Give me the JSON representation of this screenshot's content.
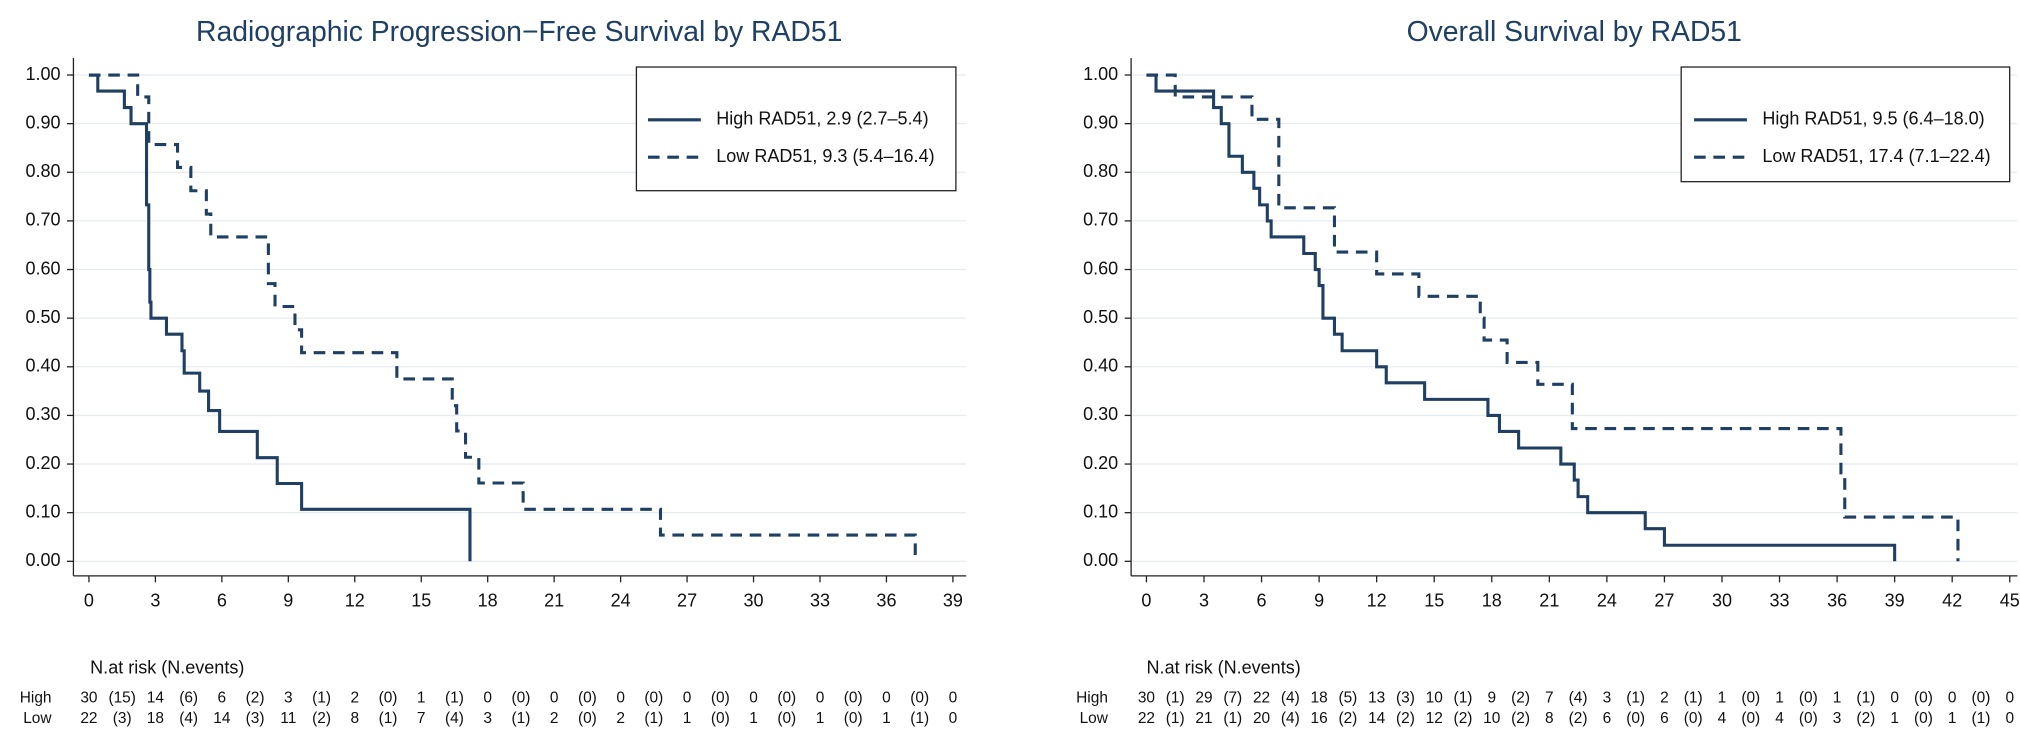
{
  "chart_data": [
    {
      "type": "step",
      "title": "Radiographic Progression−Free Survival by RAD51",
      "xlim": [
        -0.7,
        39.6
      ],
      "ylim": [
        -0.03,
        1.035
      ],
      "xticks": [
        0,
        3,
        6,
        9,
        12,
        15,
        18,
        21,
        24,
        27,
        30,
        33,
        36,
        39
      ],
      "yticks": [
        {
          "value": 0,
          "label": "0.00"
        },
        {
          "value": 0.1,
          "label": "0.10"
        },
        {
          "value": 0.2,
          "label": "0.20"
        },
        {
          "value": 0.3,
          "label": "0.30"
        },
        {
          "value": 0.4,
          "label": "0.40"
        },
        {
          "value": 0.5,
          "label": "0.50"
        },
        {
          "value": 0.6,
          "label": "0.60"
        },
        {
          "value": 0.7,
          "label": "0.70"
        },
        {
          "value": 0.8,
          "label": "0.80"
        },
        {
          "value": 0.9,
          "label": "0.90"
        },
        {
          "value": 1,
          "label": "1.00"
        }
      ],
      "grid": true,
      "series": [
        {
          "name": "High RAD51, 2.9 (2.7–5.4)",
          "color": "#1f3f63",
          "dashed": false,
          "x": [
            0,
            0.4,
            1.6,
            1.9,
            2.6,
            2.7,
            2.75,
            2.8,
            3.5,
            4.2,
            4.3,
            5.0,
            5.4,
            5.9,
            7.6,
            8.5,
            9.6,
            17.2
          ],
          "values": [
            1,
            0.967,
            0.933,
            0.9,
            0.733,
            0.6,
            0.533,
            0.5,
            0.467,
            0.433,
            0.387,
            0.35,
            0.31,
            0.267,
            0.213,
            0.16,
            0.107,
            0
          ]
        },
        {
          "name": "Low RAD51, 9.3 (5.4–16.4)",
          "color": "#1f3f63",
          "dashed": true,
          "x": [
            0,
            2.2,
            2.7,
            4.0,
            4.6,
            5.3,
            5.5,
            8.1,
            8.4,
            9.3,
            9.6,
            13.9,
            16.4,
            16.6,
            17.0,
            17.6,
            19.6,
            25.8,
            37.3
          ],
          "values": [
            1,
            0.955,
            0.857,
            0.81,
            0.762,
            0.714,
            0.667,
            0.571,
            0.524,
            0.476,
            0.429,
            0.375,
            0.32,
            0.268,
            0.214,
            0.161,
            0.107,
            0.054,
            0
          ]
        }
      ],
      "risk_table": {
        "title": "N.at risk (N.events)",
        "rows": [
          {
            "name": "High",
            "at_risk": [
              30,
              14,
              6,
              3,
              2,
              1,
              0,
              0,
              0,
              0,
              0,
              0,
              0,
              0
            ],
            "events": [
              "(15)",
              "(6)",
              "(2)",
              "(1)",
              "(0)",
              "(1)",
              "(0)",
              "(0)",
              "(0)",
              "(0)",
              "(0)",
              "(0)",
              "(0)"
            ]
          },
          {
            "name": "Low",
            "at_risk": [
              22,
              18,
              14,
              11,
              8,
              7,
              3,
              2,
              2,
              1,
              1,
              1,
              1,
              0
            ],
            "events": [
              "(3)",
              "(4)",
              "(3)",
              "(2)",
              "(1)",
              "(4)",
              "(1)",
              "(0)",
              "(1)",
              "(0)",
              "(0)",
              "(0)",
              "(1)"
            ]
          }
        ]
      }
    },
    {
      "type": "step",
      "title": "Overall Survival by RAD51",
      "xlim": [
        -0.8,
        45.4
      ],
      "ylim": [
        -0.03,
        1.035
      ],
      "xticks": [
        0,
        3,
        6,
        9,
        12,
        15,
        18,
        21,
        24,
        27,
        30,
        33,
        36,
        39,
        42,
        45
      ],
      "yticks": [
        {
          "value": 0,
          "label": "0.00"
        },
        {
          "value": 0.1,
          "label": "0.10"
        },
        {
          "value": 0.2,
          "label": "0.20"
        },
        {
          "value": 0.3,
          "label": "0.30"
        },
        {
          "value": 0.4,
          "label": "0.40"
        },
        {
          "value": 0.5,
          "label": "0.50"
        },
        {
          "value": 0.6,
          "label": "0.60"
        },
        {
          "value": 0.7,
          "label": "0.70"
        },
        {
          "value": 0.8,
          "label": "0.80"
        },
        {
          "value": 0.9,
          "label": "0.90"
        },
        {
          "value": 1,
          "label": "1.00"
        }
      ],
      "grid": true,
      "series": [
        {
          "name": "High RAD51, 9.5 (6.4–18.0)",
          "color": "#1f3f63",
          "dashed": false,
          "x": [
            0,
            0.5,
            3.5,
            3.9,
            4.3,
            5.0,
            5.6,
            5.9,
            6.3,
            6.5,
            8.2,
            8.8,
            9.0,
            9.2,
            9.8,
            10.2,
            12.0,
            12.5,
            14.5,
            17.8,
            18.4,
            19.4,
            21.6,
            22.3,
            22.5,
            23.0,
            26.0,
            27.0,
            39.0
          ],
          "values": [
            1,
            0.967,
            0.933,
            0.9,
            0.833,
            0.8,
            0.767,
            0.733,
            0.7,
            0.667,
            0.633,
            0.6,
            0.567,
            0.5,
            0.467,
            0.433,
            0.4,
            0.367,
            0.333,
            0.3,
            0.267,
            0.233,
            0.2,
            0.167,
            0.133,
            0.1,
            0.067,
            0.033,
            0
          ]
        },
        {
          "name": "Low RAD51, 17.4 (7.1–22.4)",
          "color": "#1f3f63",
          "dashed": true,
          "x": [
            0,
            1.5,
            5.5,
            6.9,
            9.8,
            12.0,
            14.2,
            17.4,
            17.6,
            18.8,
            20.4,
            22.2,
            36.2,
            36.4,
            42.3
          ],
          "values": [
            1,
            0.955,
            0.909,
            0.727,
            0.636,
            0.591,
            0.545,
            0.5,
            0.455,
            0.409,
            0.364,
            0.273,
            0.182,
            0.091,
            0
          ]
        }
      ],
      "risk_table": {
        "title": "N.at risk (N.events)",
        "rows": [
          {
            "name": "High",
            "at_risk": [
              30,
              29,
              22,
              18,
              13,
              10,
              9,
              7,
              3,
              2,
              1,
              1,
              1,
              0,
              0,
              0
            ],
            "events": [
              "(1)",
              "(7)",
              "(4)",
              "(5)",
              "(3)",
              "(1)",
              "(2)",
              "(4)",
              "(1)",
              "(1)",
              "(0)",
              "(0)",
              "(1)",
              "(0)",
              "(0)"
            ]
          },
          {
            "name": "Low",
            "at_risk": [
              22,
              21,
              20,
              16,
              14,
              12,
              10,
              8,
              6,
              6,
              4,
              4,
              3,
              1,
              1,
              0
            ],
            "events": [
              "(1)",
              "(1)",
              "(4)",
              "(2)",
              "(2)",
              "(2)",
              "(2)",
              "(2)",
              "(0)",
              "(0)",
              "(0)",
              "(0)",
              "(2)",
              "(0)",
              "(1)"
            ]
          }
        ]
      }
    }
  ]
}
